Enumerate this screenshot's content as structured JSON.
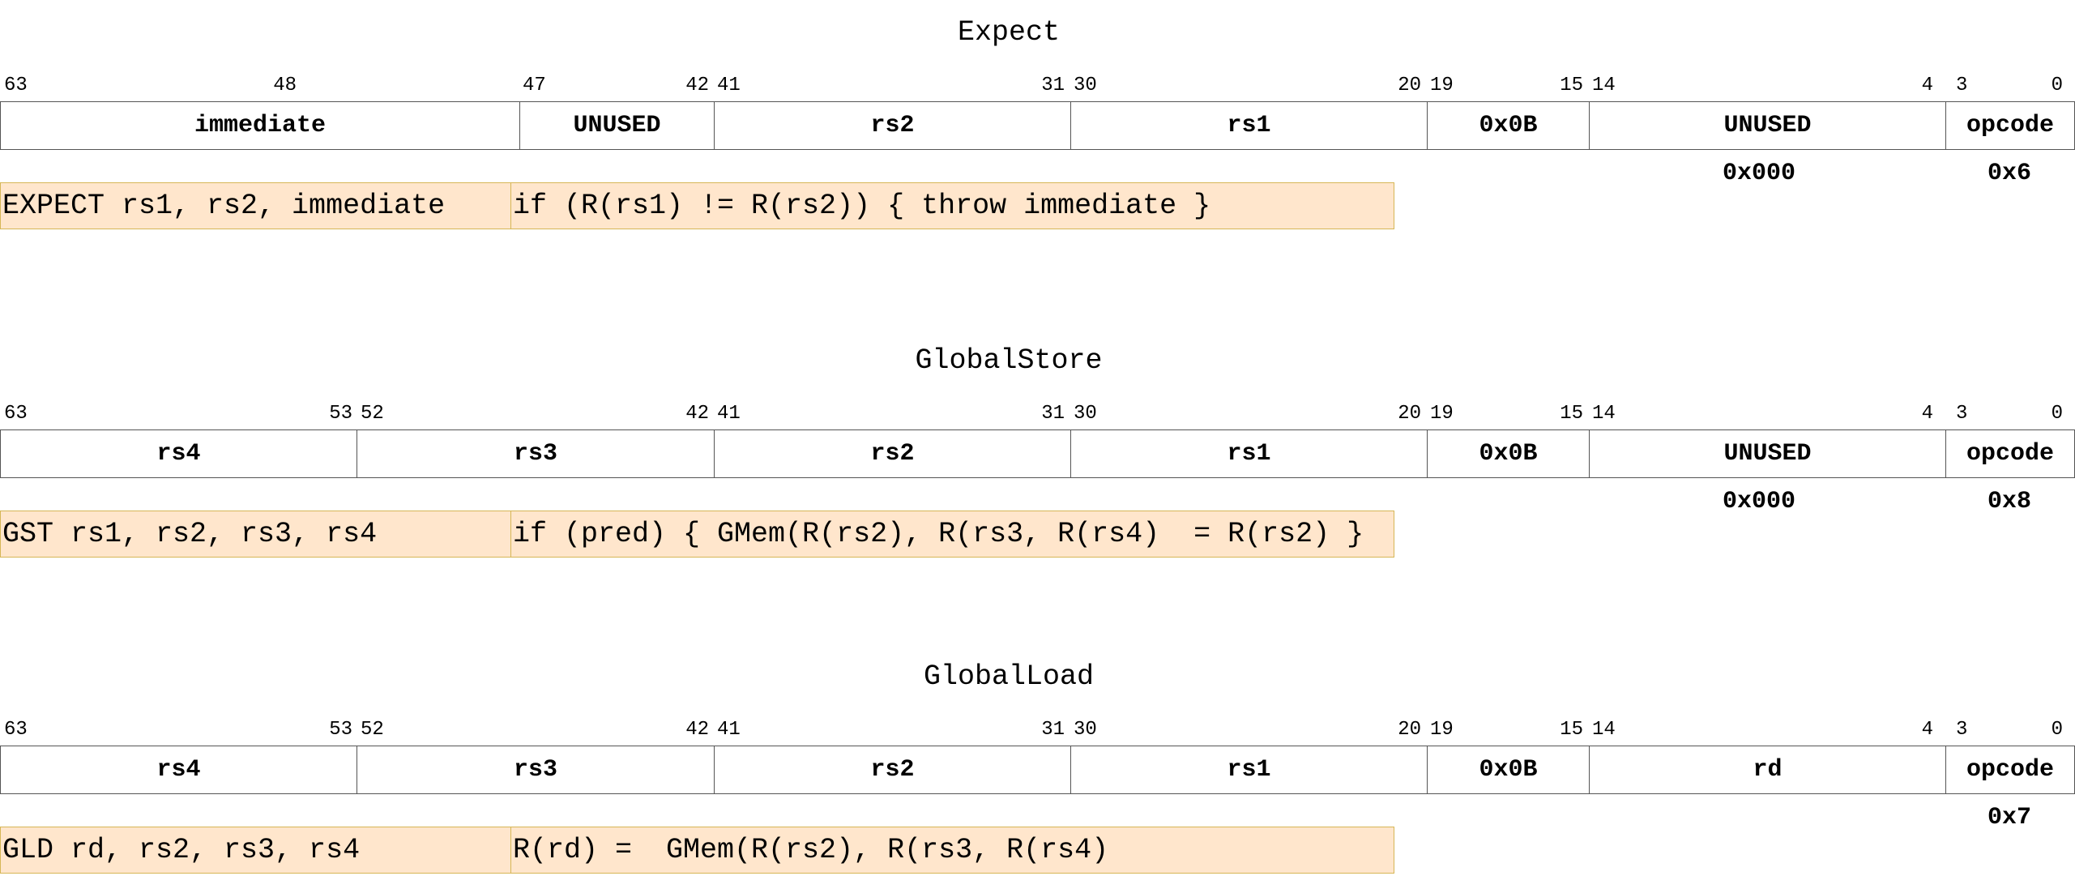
{
  "instructions": [
    {
      "title": "Expect",
      "fields": [
        {
          "label": "immediate",
          "hi": "63",
          "lo": "48"
        },
        {
          "label": "UNUSED",
          "hi": "47",
          "lo": "42"
        },
        {
          "label": "rs2",
          "hi": "41",
          "lo": "31"
        },
        {
          "label": "rs1",
          "hi": "30",
          "lo": "20"
        },
        {
          "label": "0x0B",
          "hi": "19",
          "lo": "15"
        },
        {
          "label": "UNUSED",
          "hi": "14",
          "lo": "4"
        },
        {
          "label": "opcode",
          "hi": "3",
          "lo": "0"
        }
      ],
      "field_consts": [
        "",
        "",
        "",
        "",
        "",
        "0x000",
        "0x6"
      ],
      "syntax": "EXPECT rs1, rs2, immediate",
      "semantics": "if (R(rs1) != R(rs2)) { throw immediate }"
    },
    {
      "title": "GlobalStore",
      "fields": [
        {
          "label": "rs4",
          "hi": "63",
          "lo": "53"
        },
        {
          "label": "rs3",
          "hi": "52",
          "lo": "42"
        },
        {
          "label": "rs2",
          "hi": "41",
          "lo": "31"
        },
        {
          "label": "rs1",
          "hi": "30",
          "lo": "20"
        },
        {
          "label": "0x0B",
          "hi": "19",
          "lo": "15"
        },
        {
          "label": "UNUSED",
          "hi": "14",
          "lo": "4"
        },
        {
          "label": "opcode",
          "hi": "3",
          "lo": "0"
        }
      ],
      "field_consts": [
        "",
        "",
        "",
        "",
        "",
        "0x000",
        "0x8"
      ],
      "syntax": "GST rs1, rs2, rs3, rs4",
      "semantics": "if (pred) { GMem(R(rs2), R(rs3, R(rs4)  = R(rs2) }"
    },
    {
      "title": "GlobalLoad",
      "fields": [
        {
          "label": "rs4",
          "hi": "63",
          "lo": "53"
        },
        {
          "label": "rs3",
          "hi": "52",
          "lo": "42"
        },
        {
          "label": "rs2",
          "hi": "41",
          "lo": "31"
        },
        {
          "label": "rs1",
          "hi": "30",
          "lo": "20"
        },
        {
          "label": "0x0B",
          "hi": "19",
          "lo": "15"
        },
        {
          "label": "rd",
          "hi": "14",
          "lo": "4"
        },
        {
          "label": "opcode",
          "hi": "3",
          "lo": "0"
        }
      ],
      "field_consts": [
        "",
        "",
        "",
        "",
        "",
        "",
        "0x7"
      ],
      "syntax": "GLD rd, rs2, rs3, rs4",
      "semantics": "R(rd) =  GMem(R(rs2), R(rs3, R(rs4)"
    }
  ]
}
